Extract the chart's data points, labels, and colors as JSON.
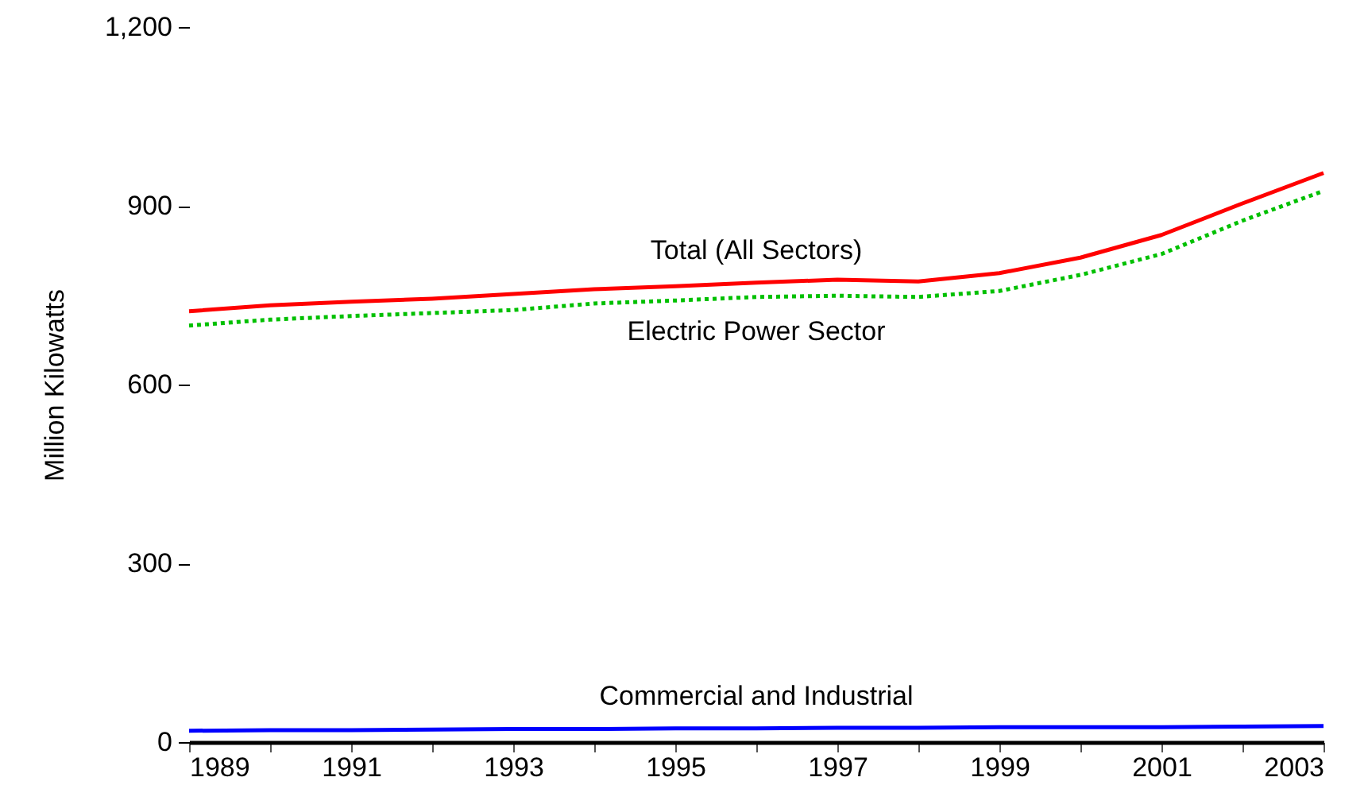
{
  "chart_data": {
    "type": "line",
    "ylabel": "Million Kilowatts",
    "x": [
      1989,
      1990,
      1991,
      1992,
      1993,
      1994,
      1995,
      1996,
      1997,
      1998,
      1999,
      2000,
      2001,
      2002,
      2003
    ],
    "series": [
      {
        "name": "Total (All Sectors)",
        "color": "#ff0000",
        "line_style": "solid",
        "values": [
          723,
          733,
          739,
          744,
          752,
          760,
          765,
          771,
          776,
          773,
          787,
          813,
          851,
          904,
          955
        ]
      },
      {
        "name": "Electric Power Sector",
        "color": "#00c000",
        "line_style": "dotted",
        "values": [
          699,
          709,
          715,
          720,
          725,
          736,
          741,
          747,
          749,
          747,
          757,
          784,
          819,
          875,
          925
        ]
      },
      {
        "name": "Commercial and Industrial",
        "color": "#0000ff",
        "line_style": "solid",
        "values": [
          19,
          20,
          20,
          21,
          22,
          22,
          23,
          23,
          24,
          24,
          25,
          25,
          25,
          26,
          27
        ]
      }
    ],
    "xlim": [
      1989,
      2003
    ],
    "xticks": [
      1989,
      {
        "value": 1990,
        "label": null
      },
      1991,
      {
        "value": 1992,
        "label": null
      },
      1993,
      {
        "value": 1994,
        "label": null
      },
      1995,
      {
        "value": 1996,
        "label": null
      },
      1997,
      {
        "value": 1998,
        "label": null
      },
      1999,
      {
        "value": 2000,
        "label": null
      },
      2001,
      {
        "value": 2002,
        "label": null
      },
      2003
    ],
    "ylim": [
      0,
      1200
    ],
    "yticks": [
      0,
      300,
      600,
      900,
      {
        "value": 1200,
        "label": "1,200"
      }
    ],
    "grid": false,
    "marker": "none"
  }
}
